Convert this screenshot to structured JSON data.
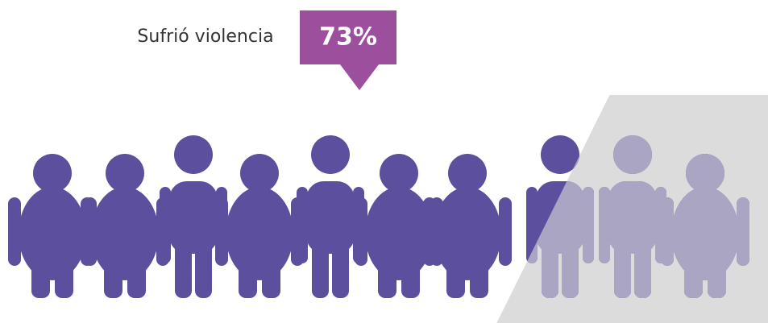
{
  "chart_data": {
    "type": "pictograph",
    "label": "Sufrió violencia",
    "values": [
      73
    ],
    "value_labels": [
      "73%"
    ],
    "xlim": [
      0,
      100
    ],
    "color": "#5b4f9e",
    "highlight_color": "#9b4f9c",
    "faded_color": "#a9a5c2",
    "shade_color": "#dcdcdc"
  }
}
